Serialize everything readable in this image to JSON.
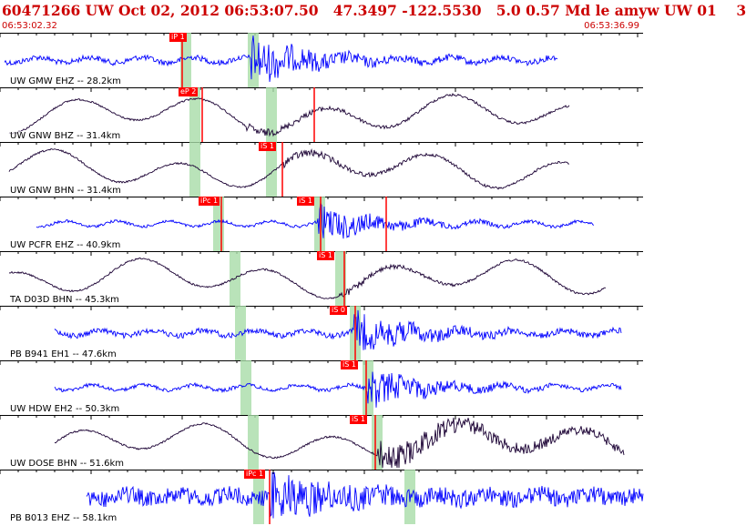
{
  "header": {
    "event_line": "60471266 UW Oct 02, 2012 06:53:07.50   47.3497 -122.5530   5.0 0.57 Md le amyw UW 01    3",
    "time_start": "06:53:02.32",
    "time_end": "06:53:36.99"
  },
  "colors": {
    "broadband_trace": "#0000ff",
    "long_period_trace": "#1a0033",
    "pick": "#ff0000",
    "window": "#a8dca8",
    "text": "#cc0000"
  },
  "channels": [
    {
      "label": "UW GMW EHZ -- 28.2km",
      "pick": "iP 1",
      "color_kind": "broadband"
    },
    {
      "label": "UW GNW BHZ -- 31.4km",
      "pick": "eP 2",
      "color_kind": "long_period"
    },
    {
      "label": "UW GNW BHN -- 31.4km",
      "pick": "iS 1",
      "color_kind": "long_period"
    },
    {
      "label": "UW PCFR EHZ -- 40.9km",
      "pick": "iPc 1",
      "pick2": "iS 1",
      "color_kind": "broadband"
    },
    {
      "label": "TA D03D BHN -- 45.3km",
      "pick": "iS 1",
      "color_kind": "long_period"
    },
    {
      "label": "PB B941 EH1 -- 47.6km",
      "pick": "iS 0",
      "color_kind": "broadband"
    },
    {
      "label": "UW HDW EH2 -- 50.3km",
      "pick": "iS 1",
      "color_kind": "broadband"
    },
    {
      "label": "UW DOSE BHN -- 51.6km",
      "pick": "iS 1",
      "color_kind": "long_period"
    },
    {
      "label": "PB B013 EHZ -- 58.1km",
      "pick": "iPc 1",
      "color_kind": "broadband"
    }
  ]
}
